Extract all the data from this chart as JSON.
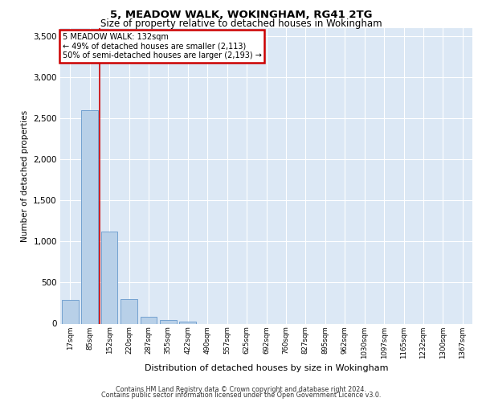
{
  "title1": "5, MEADOW WALK, WOKINGHAM, RG41 2TG",
  "title2": "Size of property relative to detached houses in Wokingham",
  "xlabel": "Distribution of detached houses by size in Wokingham",
  "ylabel": "Number of detached properties",
  "bar_labels": [
    "17sqm",
    "85sqm",
    "152sqm",
    "220sqm",
    "287sqm",
    "355sqm",
    "422sqm",
    "490sqm",
    "557sqm",
    "625sqm",
    "692sqm",
    "760sqm",
    "827sqm",
    "895sqm",
    "962sqm",
    "1030sqm",
    "1097sqm",
    "1165sqm",
    "1232sqm",
    "1300sqm",
    "1367sqm"
  ],
  "bar_values": [
    290,
    2600,
    1120,
    295,
    85,
    40,
    20,
    0,
    0,
    0,
    0,
    0,
    0,
    0,
    0,
    0,
    0,
    0,
    0,
    0,
    0
  ],
  "bar_color": "#b8d0e8",
  "bar_edge_color": "#6699cc",
  "property_line_label": "5 MEADOW WALK: 132sqm",
  "annotation_line1": "← 49% of detached houses are smaller (2,113)",
  "annotation_line2": "50% of semi-detached houses are larger (2,193) →",
  "annotation_box_color": "#ffffff",
  "annotation_box_edge_color": "#cc0000",
  "red_line_x": 1.5,
  "ylim": [
    0,
    3600
  ],
  "yticks": [
    0,
    500,
    1000,
    1500,
    2000,
    2500,
    3000,
    3500
  ],
  "background_color": "#dce8f5",
  "grid_color": "#ffffff",
  "footer1": "Contains HM Land Registry data © Crown copyright and database right 2024.",
  "footer2": "Contains public sector information licensed under the Open Government Licence v3.0."
}
